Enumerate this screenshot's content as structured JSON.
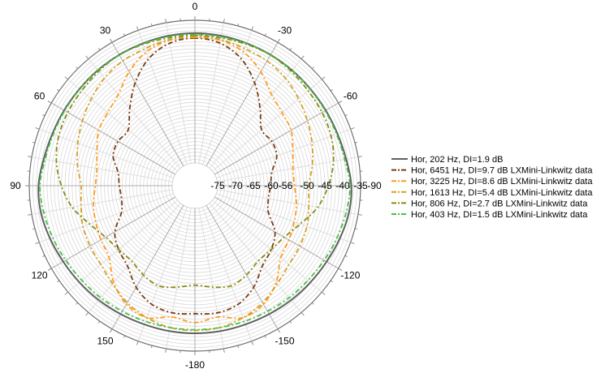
{
  "chart_data": {
    "type": "polar-line",
    "radial_axis": {
      "min": -75,
      "max": -35,
      "grid_step": 1,
      "tick_labels": [
        "-75",
        "-70",
        "-65",
        "-60",
        "-56",
        "-50",
        "-45",
        "-40",
        "-35"
      ],
      "tick_values": [
        -75,
        -70,
        -65,
        -60,
        -56,
        -50,
        -45,
        -40,
        -35
      ]
    },
    "angular_axis": {
      "direction": "clockwise-negative",
      "grid_step_deg": 10,
      "tick_labels": [
        "0",
        "-30",
        "-60",
        "-90",
        "-120",
        "-150",
        "-180",
        "150",
        "120",
        "90",
        "60",
        "30"
      ],
      "tick_values": [
        0,
        -30,
        -60,
        -90,
        -120,
        -150,
        180,
        150,
        120,
        90,
        60,
        30
      ]
    },
    "legend_placement": "right",
    "angles": [
      0,
      10,
      20,
      30,
      40,
      50,
      60,
      70,
      80,
      90,
      100,
      110,
      120,
      130,
      140,
      150,
      160,
      170,
      180,
      190,
      200,
      210,
      220,
      230,
      240,
      250,
      260,
      270,
      280,
      290,
      300,
      310,
      320,
      330,
      340,
      350
    ],
    "series": [
      {
        "name": "Hor, 202 Hz, DI=1.9 dB",
        "color": "#606060",
        "dash": "solid",
        "values": [
          -38.6,
          -38.7,
          -38.9,
          -39.0,
          -39.1,
          -39.2,
          -39.1,
          -38.9,
          -38.4,
          -37.6,
          -37.6,
          -38.2,
          -38.8,
          -39.2,
          -39.5,
          -39.8,
          -40.0,
          -40.0,
          -40.0,
          -40.0,
          -40.0,
          -39.8,
          -39.5,
          -39.2,
          -38.8,
          -38.2,
          -37.6,
          -37.6,
          -38.4,
          -38.9,
          -39.1,
          -39.2,
          -39.1,
          -39.0,
          -38.9,
          -38.7
        ]
      },
      {
        "name": "Hor, 6451 Hz, DI=9.7 dB LXMini-Linkwitz data",
        "color": "#7a3b14",
        "dash": "dashdot",
        "values": [
          -40.0,
          -40.8,
          -43.5,
          -48.0,
          -53.0,
          -57.0,
          -56.5,
          -57.0,
          -59.5,
          -60.2,
          -60.5,
          -59.5,
          -55.5,
          -53.5,
          -52.0,
          -48.5,
          -46.0,
          -45.2,
          -45.5,
          -45.2,
          -46.0,
          -48.5,
          -52.0,
          -53.5,
          -55.5,
          -59.5,
          -60.5,
          -60.2,
          -59.5,
          -57.0,
          -56.5,
          -57.0,
          -53.0,
          -48.0,
          -43.5,
          -40.8
        ]
      },
      {
        "name": "Hor, 3225 Hz, DI=8.6 dB LXMini-Linkwitz data",
        "color": "#ff9a1a",
        "dash": "dashdot",
        "values": [
          -39.8,
          -40.0,
          -41.5,
          -44.5,
          -48.0,
          -49.5,
          -50.3,
          -52.2,
          -53.5,
          -53.5,
          -52.5,
          -51.8,
          -51.0,
          -50.0,
          -46.0,
          -43.0,
          -42.0,
          -44.0,
          -43.0,
          -44.0,
          -42.0,
          -43.0,
          -46.0,
          -50.0,
          -51.0,
          -51.8,
          -52.5,
          -53.5,
          -53.5,
          -52.2,
          -50.3,
          -49.5,
          -48.0,
          -44.5,
          -41.5,
          -40.0
        ]
      },
      {
        "name": "Hor, 1613 Hz, DI=5.4 dB LXMini-Linkwitz data",
        "color": "#d4a024",
        "dash": "dashdot",
        "values": [
          -39.5,
          -39.8,
          -40.5,
          -41.0,
          -42.0,
          -43.5,
          -45.0,
          -46.5,
          -48.0,
          -49.5,
          -49.0,
          -48.0,
          -47.5,
          -47.0,
          -45.5,
          -43.5,
          -42.0,
          -41.0,
          -40.8,
          -41.0,
          -42.0,
          -43.5,
          -45.5,
          -47.0,
          -47.5,
          -48.0,
          -49.0,
          -49.5,
          -48.0,
          -46.5,
          -45.0,
          -43.5,
          -42.0,
          -41.0,
          -40.5,
          -39.8
        ]
      },
      {
        "name": "Hor, 806 Hz, DI=2.7 dB LXMini-Linkwitz data",
        "color": "#8a8a14",
        "dash": "dashdot",
        "values": [
          -39.2,
          -39.3,
          -39.2,
          -39.1,
          -39.5,
          -40.0,
          -40.3,
          -40.8,
          -42.0,
          -44.0,
          -46.5,
          -50.0,
          -52.5,
          -53.5,
          -53.8,
          -52.5,
          -51.5,
          -52.5,
          -53.5,
          -52.5,
          -51.5,
          -52.5,
          -53.8,
          -53.5,
          -52.5,
          -50.0,
          -46.5,
          -44.0,
          -42.0,
          -40.8,
          -40.3,
          -40.0,
          -39.5,
          -39.1,
          -39.2,
          -39.3
        ]
      },
      {
        "name": "Hor, 403 Hz, DI=1.5 dB LXMini-Linkwitz data",
        "color": "#44c244",
        "dash": "dashdot",
        "values": [
          -39.0,
          -39.0,
          -39.0,
          -39.1,
          -39.2,
          -39.3,
          -39.3,
          -39.2,
          -38.8,
          -38.0,
          -38.4,
          -39.0,
          -39.6,
          -40.1,
          -40.4,
          -40.7,
          -40.9,
          -41.0,
          -41.0,
          -41.0,
          -40.9,
          -40.7,
          -40.4,
          -40.1,
          -39.6,
          -39.0,
          -38.4,
          -38.0,
          -38.8,
          -39.2,
          -39.3,
          -39.3,
          -39.2,
          -39.1,
          -39.0,
          -39.0
        ]
      }
    ]
  }
}
